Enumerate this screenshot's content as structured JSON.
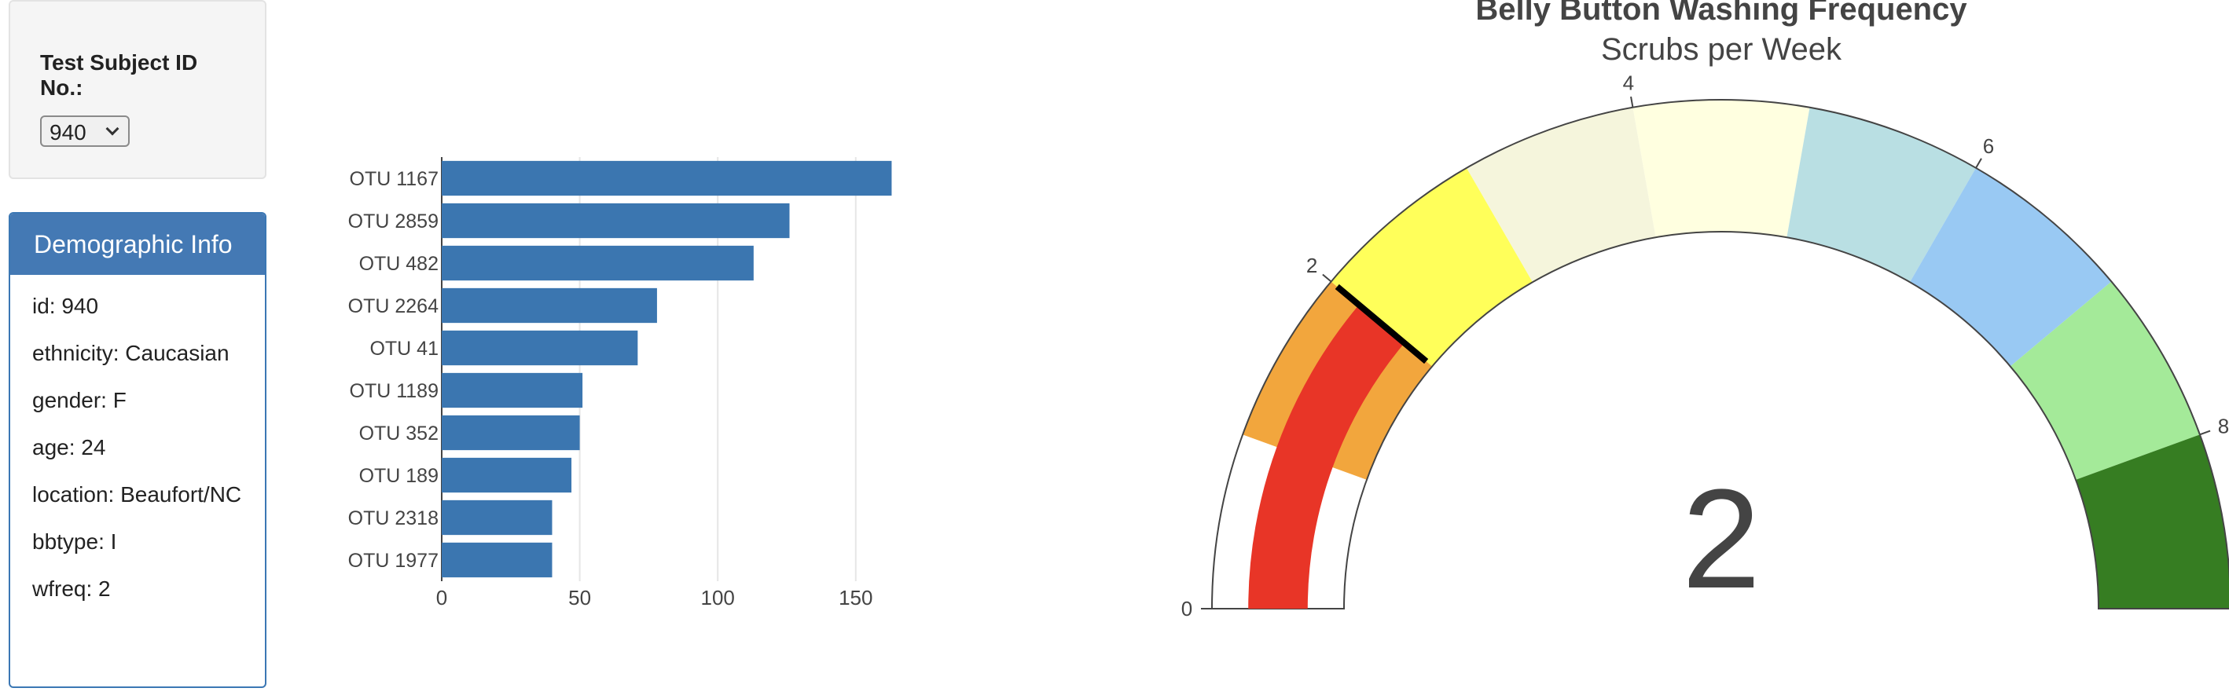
{
  "selector": {
    "label": "Test Subject ID No.:",
    "value": "940"
  },
  "demographic": {
    "title": "Demographic Info",
    "items": [
      "id: 940",
      "ethnicity: Caucasian",
      "gender: F",
      "age: 24",
      "location: Beaufort/NC",
      "bbtype: I",
      "wfreq: 2"
    ]
  },
  "chart_data": [
    {
      "type": "bar",
      "orientation": "horizontal",
      "categories": [
        "OTU 1167",
        "OTU 2859",
        "OTU 482",
        "OTU 2264",
        "OTU 41",
        "OTU 1189",
        "OTU 352",
        "OTU 189",
        "OTU 2318",
        "OTU 1977"
      ],
      "values": [
        163,
        126,
        113,
        78,
        71,
        51,
        50,
        47,
        40,
        40
      ],
      "xlim": [
        0,
        168
      ],
      "xticks": [
        0,
        50,
        100,
        150
      ],
      "grid": true,
      "bar_color": "#3b76b0"
    },
    {
      "type": "gauge",
      "title": "Belly Button Washing Frequency",
      "subtitle": "Scrubs per Week",
      "value": 2,
      "range": [
        0,
        9
      ],
      "tick_values": [
        0,
        2,
        4,
        6,
        8
      ],
      "steps": [
        {
          "range": [
            0,
            1
          ],
          "color": "#ffffff"
        },
        {
          "range": [
            1,
            2
          ],
          "color": "#f2a63d"
        },
        {
          "range": [
            2,
            3
          ],
          "color": "#ffff5a"
        },
        {
          "range": [
            3,
            4
          ],
          "color": "#f5f5dc"
        },
        {
          "range": [
            4,
            5
          ],
          "color": "#ffffe0"
        },
        {
          "range": [
            5,
            6
          ],
          "color": "#b9dfe3"
        },
        {
          "range": [
            6,
            7
          ],
          "color": "#99c9f3"
        },
        {
          "range": [
            7,
            8
          ],
          "color": "#a4ea99"
        },
        {
          "range": [
            8,
            9
          ],
          "color": "#367d22"
        }
      ],
      "value_bar_color": "#e83527",
      "threshold_color": "#000000"
    }
  ]
}
